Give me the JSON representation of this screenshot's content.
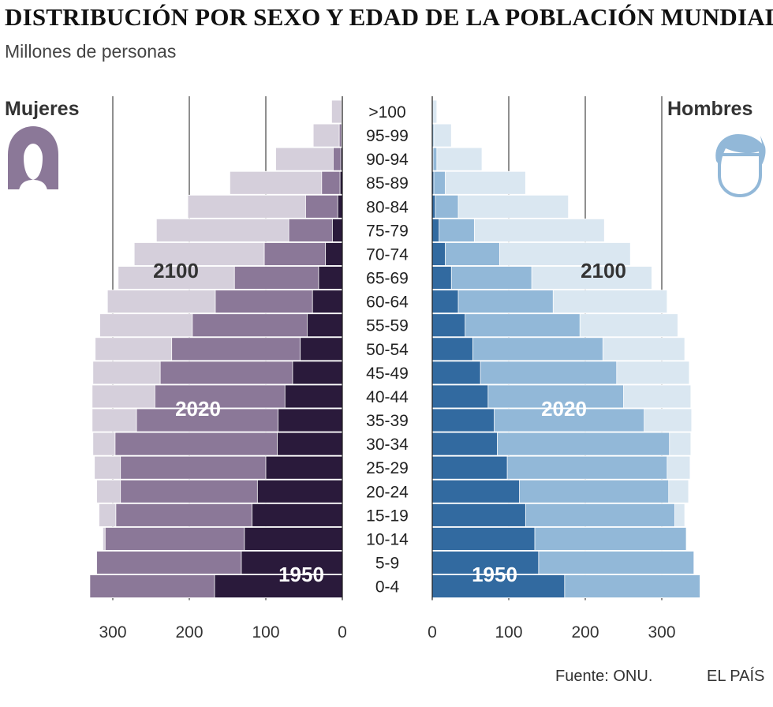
{
  "title": "DISTRIBUCIÓN POR SEXO Y EDAD DE LA POBLACIÓN MUNDIAL",
  "subtitle": "Millones de personas",
  "labels": {
    "women": "Mujeres",
    "men": "Hombres"
  },
  "icons": {
    "women": "woman-head-icon",
    "men": "man-head-icon"
  },
  "footer": {
    "source": "Fuente: ONU.",
    "brand": "EL PAÍS"
  },
  "colors": {
    "women_2100": "#d5cfdb",
    "women_2020": "#8b7898",
    "women_1950": "#2a1a3b",
    "men_2100": "#dae7f1",
    "men_2020": "#92b8d8",
    "men_1950": "#326aa0",
    "year_dark": "#333333",
    "year_light": "#ffffff"
  },
  "chart_data": {
    "type": "population-pyramid",
    "units": "Millones de personas",
    "xlim": [
      0,
      350
    ],
    "ticks": [
      0,
      100,
      200,
      300
    ],
    "tick_labels": [
      "0",
      "100",
      "200",
      "300"
    ],
    "age_groups": [
      ">100",
      "95-99",
      "90-94",
      "85-89",
      "80-84",
      "75-79",
      "70-74",
      "65-69",
      "60-64",
      "55-59",
      "50-54",
      "45-49",
      "40-44",
      "35-39",
      "30-34",
      "25-29",
      "20-24",
      "15-19",
      "10-14",
      "5-9",
      "0-4"
    ],
    "year_labels": {
      "women": {
        "2100": "2100",
        "2020": "2020",
        "1950": "1950"
      },
      "men": {
        "2100": "2100",
        "2020": "2020",
        "1950": "1950"
      }
    },
    "series": [
      {
        "name": "Mujeres 2100",
        "sex": "women",
        "year": "2100",
        "values": [
          14,
          38,
          87,
          147,
          202,
          243,
          272,
          293,
          307,
          317,
          323,
          326,
          327,
          327,
          326,
          324,
          321,
          318,
          313,
          322,
          330
        ]
      },
      {
        "name": "Mujeres 2020",
        "sex": "women",
        "year": "2020",
        "values": [
          1,
          4,
          12,
          27,
          48,
          70,
          102,
          141,
          166,
          196,
          223,
          238,
          245,
          269,
          297,
          290,
          290,
          296,
          310,
          321,
          330
        ]
      },
      {
        "name": "Mujeres 1950",
        "sex": "women",
        "year": "1950",
        "values": [
          0,
          1,
          2,
          3,
          6,
          13,
          22,
          31,
          39,
          46,
          55,
          65,
          75,
          84,
          85,
          100,
          111,
          118,
          128,
          132,
          167
        ]
      },
      {
        "name": "Hombres 2100",
        "sex": "men",
        "year": "2100",
        "values": [
          6,
          25,
          65,
          122,
          178,
          225,
          259,
          287,
          307,
          321,
          330,
          336,
          338,
          339,
          338,
          337,
          335,
          330,
          331,
          342,
          350
        ]
      },
      {
        "name": "Hombres 2020",
        "sex": "men",
        "year": "2020",
        "values": [
          0,
          2,
          6,
          17,
          34,
          55,
          88,
          130,
          158,
          193,
          223,
          241,
          250,
          277,
          310,
          307,
          309,
          317,
          332,
          342,
          350
        ]
      },
      {
        "name": "Hombres 1950",
        "sex": "men",
        "year": "1950",
        "values": [
          0,
          0,
          1,
          2,
          4,
          9,
          17,
          25,
          34,
          43,
          53,
          63,
          73,
          81,
          85,
          98,
          114,
          122,
          134,
          139,
          173
        ]
      }
    ]
  }
}
